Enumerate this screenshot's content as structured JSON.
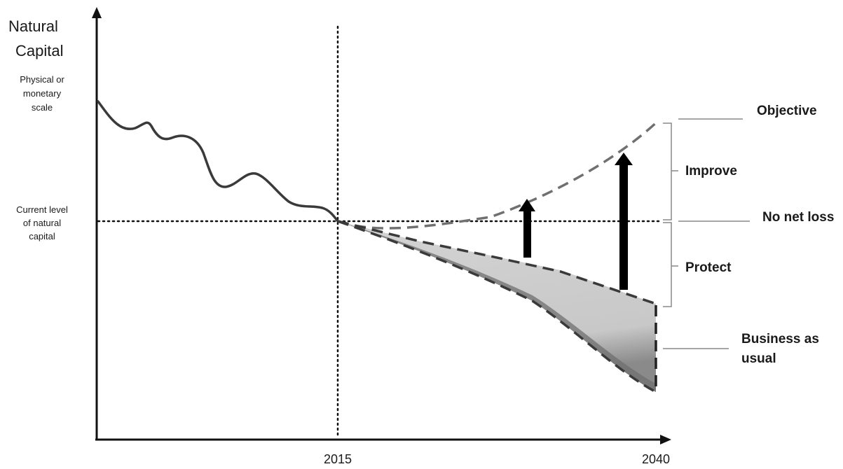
{
  "y_axis": {
    "title_line1": "Natural",
    "title_line2": "Capital",
    "subtitle_line1": "Physical or",
    "subtitle_line2": "monetary",
    "subtitle_line3": "scale"
  },
  "current_level": {
    "line1": "Current level",
    "line2": "of natural",
    "line3": "capital"
  },
  "x_axis": {
    "tick_2015": "2015",
    "tick_2040": "2040"
  },
  "scenarios": {
    "objective": "Objective",
    "no_net_loss": "No net loss",
    "business_as_usual_line1": "Business as",
    "business_as_usual_line2": "usual"
  },
  "brackets": {
    "improve": "Improve",
    "protect": "Protect"
  },
  "colors": {
    "ink": "#1a1a1a",
    "dashed_objective": "#6e6e6e",
    "dashed_protect": "#3a3a3a",
    "shade_light": "#d2d2d2",
    "shade_dark": "#7a7a7a",
    "guide": "#8a8a8a"
  }
}
